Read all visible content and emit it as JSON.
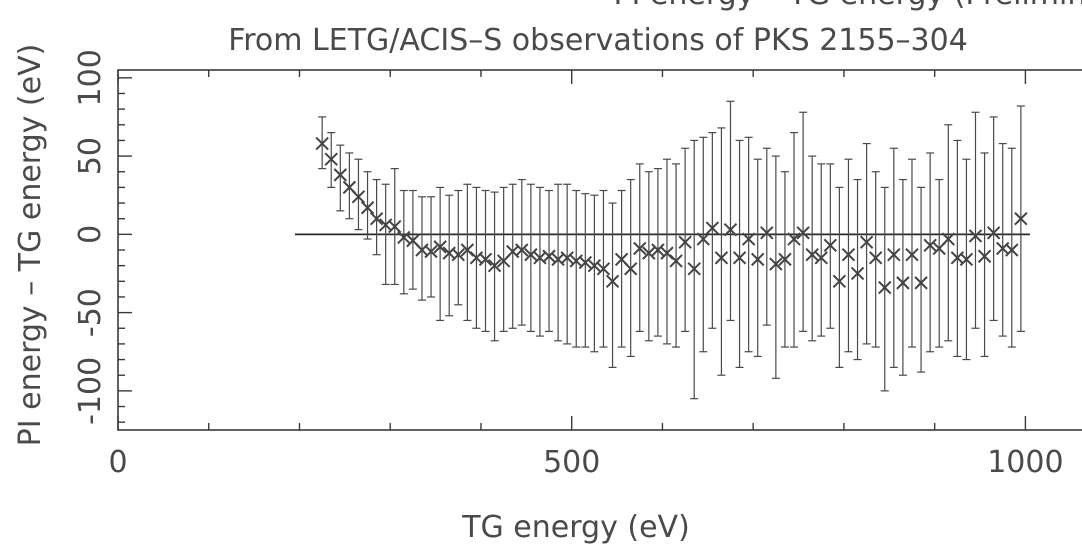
{
  "chart_data": {
    "type": "scatter",
    "title_top_partial": "PI energy – TG energy (Preliminary)",
    "title": "From LETG/ACIS–S observations of PKS 2155–304",
    "xlabel": "TG energy (eV)",
    "ylabel": "PI energy  –  TG energy (eV)",
    "xlim": [
      0,
      1080
    ],
    "ylim": [
      -125,
      105
    ],
    "xticks": [
      0,
      500,
      1000
    ],
    "xtick_labels": [
      "0",
      "500",
      "1000"
    ],
    "yticks": [
      -100,
      -50,
      0,
      50,
      100
    ],
    "ytick_labels": [
      "-100",
      "-50",
      "0",
      "50",
      "100"
    ],
    "reference_line": {
      "y": 0,
      "x_start": 195,
      "x_end": 1005
    },
    "marker": "x",
    "grid": false,
    "series": [
      {
        "points": [
          {
            "x": 225,
            "y": 58,
            "lo": 42,
            "hi": 75
          },
          {
            "x": 235,
            "y": 48,
            "lo": 30,
            "hi": 65
          },
          {
            "x": 245,
            "y": 38,
            "lo": 15,
            "hi": 57
          },
          {
            "x": 255,
            "y": 30,
            "lo": 10,
            "hi": 52
          },
          {
            "x": 265,
            "y": 24,
            "lo": 3,
            "hi": 48
          },
          {
            "x": 275,
            "y": 17,
            "lo": -3,
            "hi": 40
          },
          {
            "x": 285,
            "y": 10,
            "lo": -13,
            "hi": 35
          },
          {
            "x": 295,
            "y": 6,
            "lo": -32,
            "hi": 32
          },
          {
            "x": 305,
            "y": 5,
            "lo": -32,
            "hi": 42
          },
          {
            "x": 315,
            "y": -2,
            "lo": -38,
            "hi": 28
          },
          {
            "x": 325,
            "y": -4,
            "lo": -35,
            "hi": 28
          },
          {
            "x": 335,
            "y": -10,
            "lo": -42,
            "hi": 24
          },
          {
            "x": 345,
            "y": -11,
            "lo": -40,
            "hi": 24
          },
          {
            "x": 355,
            "y": -8,
            "lo": -55,
            "hi": 30
          },
          {
            "x": 365,
            "y": -12,
            "lo": -52,
            "hi": 25
          },
          {
            "x": 375,
            "y": -13,
            "lo": -45,
            "hi": 28
          },
          {
            "x": 385,
            "y": -10,
            "lo": -55,
            "hi": 32
          },
          {
            "x": 395,
            "y": -15,
            "lo": -60,
            "hi": 30
          },
          {
            "x": 405,
            "y": -16,
            "lo": -62,
            "hi": 28
          },
          {
            "x": 415,
            "y": -20,
            "lo": -68,
            "hi": 27
          },
          {
            "x": 425,
            "y": -17,
            "lo": -62,
            "hi": 30
          },
          {
            "x": 435,
            "y": -11,
            "lo": -60,
            "hi": 32
          },
          {
            "x": 445,
            "y": -10,
            "lo": -58,
            "hi": 35
          },
          {
            "x": 455,
            "y": -13,
            "lo": -62,
            "hi": 32
          },
          {
            "x": 465,
            "y": -15,
            "lo": -65,
            "hi": 30
          },
          {
            "x": 475,
            "y": -14,
            "lo": -62,
            "hi": 28
          },
          {
            "x": 485,
            "y": -16,
            "lo": -68,
            "hi": 32
          },
          {
            "x": 495,
            "y": -15,
            "lo": -70,
            "hi": 32
          },
          {
            "x": 505,
            "y": -17,
            "lo": -72,
            "hi": 28
          },
          {
            "x": 515,
            "y": -18,
            "lo": -72,
            "hi": 26
          },
          {
            "x": 525,
            "y": -20,
            "lo": -75,
            "hi": 25
          },
          {
            "x": 535,
            "y": -22,
            "lo": -72,
            "hi": 28
          },
          {
            "x": 545,
            "y": -30,
            "lo": -85,
            "hi": 20
          },
          {
            "x": 555,
            "y": -16,
            "lo": -72,
            "hi": 28
          },
          {
            "x": 565,
            "y": -22,
            "lo": -78,
            "hi": 35
          },
          {
            "x": 575,
            "y": -9,
            "lo": -62,
            "hi": 45
          },
          {
            "x": 585,
            "y": -12,
            "lo": -68,
            "hi": 40
          },
          {
            "x": 595,
            "y": -10,
            "lo": -65,
            "hi": 42
          },
          {
            "x": 605,
            "y": -12,
            "lo": -70,
            "hi": 48
          },
          {
            "x": 615,
            "y": -17,
            "lo": -72,
            "hi": 45
          },
          {
            "x": 625,
            "y": -5,
            "lo": -62,
            "hi": 55
          },
          {
            "x": 635,
            "y": -22,
            "lo": -105,
            "hi": 60
          },
          {
            "x": 645,
            "y": -3,
            "lo": -75,
            "hi": 62
          },
          {
            "x": 655,
            "y": 4,
            "lo": -60,
            "hi": 65
          },
          {
            "x": 665,
            "y": -15,
            "lo": -90,
            "hi": 68
          },
          {
            "x": 675,
            "y": 3,
            "lo": -55,
            "hi": 85
          },
          {
            "x": 685,
            "y": -15,
            "lo": -85,
            "hi": 60
          },
          {
            "x": 695,
            "y": -3,
            "lo": -75,
            "hi": 62
          },
          {
            "x": 705,
            "y": -16,
            "lo": -78,
            "hi": 48
          },
          {
            "x": 715,
            "y": 1,
            "lo": -58,
            "hi": 55
          },
          {
            "x": 725,
            "y": -19,
            "lo": -92,
            "hi": 50
          },
          {
            "x": 735,
            "y": -16,
            "lo": -72,
            "hi": 40
          },
          {
            "x": 745,
            "y": -3,
            "lo": -72,
            "hi": 65
          },
          {
            "x": 755,
            "y": 1,
            "lo": -62,
            "hi": 78
          },
          {
            "x": 765,
            "y": -13,
            "lo": -68,
            "hi": 50
          },
          {
            "x": 775,
            "y": -15,
            "lo": -65,
            "hi": 45
          },
          {
            "x": 785,
            "y": -7,
            "lo": -60,
            "hi": 45
          },
          {
            "x": 795,
            "y": -30,
            "lo": -85,
            "hi": 30
          },
          {
            "x": 805,
            "y": -13,
            "lo": -75,
            "hi": 48
          },
          {
            "x": 815,
            "y": -25,
            "lo": -80,
            "hi": 35
          },
          {
            "x": 825,
            "y": -5,
            "lo": -70,
            "hi": 58
          },
          {
            "x": 835,
            "y": -15,
            "lo": -72,
            "hi": 40
          },
          {
            "x": 845,
            "y": -34,
            "lo": -100,
            "hi": 30
          },
          {
            "x": 855,
            "y": -13,
            "lo": -85,
            "hi": 55
          },
          {
            "x": 865,
            "y": -31,
            "lo": -90,
            "hi": 35
          },
          {
            "x": 875,
            "y": -13,
            "lo": -72,
            "hi": 48
          },
          {
            "x": 885,
            "y": -31,
            "lo": -88,
            "hi": 30
          },
          {
            "x": 895,
            "y": -7,
            "lo": -75,
            "hi": 52
          },
          {
            "x": 905,
            "y": -9,
            "lo": -72,
            "hi": 35
          },
          {
            "x": 915,
            "y": -3,
            "lo": -68,
            "hi": 70
          },
          {
            "x": 925,
            "y": -15,
            "lo": -78,
            "hi": 60
          },
          {
            "x": 935,
            "y": -16,
            "lo": -80,
            "hi": 48
          },
          {
            "x": 945,
            "y": -1,
            "lo": -60,
            "hi": 78
          },
          {
            "x": 955,
            "y": -14,
            "lo": -78,
            "hi": 52
          },
          {
            "x": 965,
            "y": 1,
            "lo": -55,
            "hi": 75
          },
          {
            "x": 975,
            "y": -9,
            "lo": -65,
            "hi": 58
          },
          {
            "x": 985,
            "y": -10,
            "lo": -72,
            "hi": 55
          },
          {
            "x": 995,
            "y": 10,
            "lo": -62,
            "hi": 82
          }
        ]
      }
    ]
  }
}
